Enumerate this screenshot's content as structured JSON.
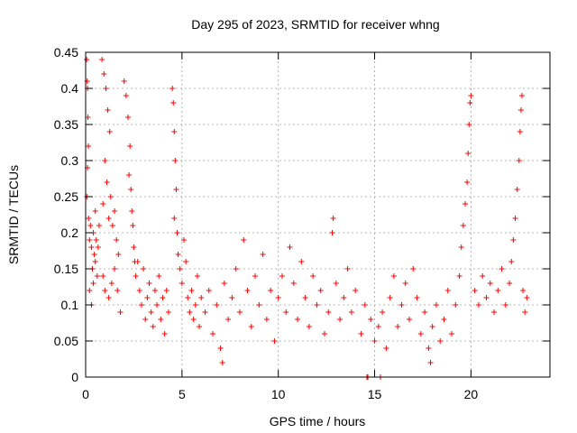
{
  "chart_data": {
    "type": "scatter",
    "title": "Day 295 of 2023, SRMTID for receiver whng",
    "xlabel": "GPS time / hours",
    "ylabel": "SRMTID / TECUs",
    "xlim": [
      0,
      24.1
    ],
    "ylim": [
      0,
      0.45
    ],
    "grid": true,
    "marker": "+",
    "color": "#ff0000",
    "xticks": [
      0,
      5,
      10,
      15,
      20
    ],
    "xtick_labels": [
      "0",
      "5",
      "10",
      "15",
      "20"
    ],
    "yticks": [
      0,
      0.05,
      0.1,
      0.15,
      0.2,
      0.25,
      0.3,
      0.35,
      0.4,
      0.45
    ],
    "ytick_labels": [
      "0",
      "0.05",
      "0.1",
      "0.15",
      "0.2",
      "0.25",
      "0.3",
      "0.35",
      "0.4",
      "0.45"
    ],
    "series": [
      {
        "name": "SRMTID",
        "points": [
          [
            0.05,
            0.44
          ],
          [
            0.08,
            0.41
          ],
          [
            0.1,
            0.4
          ],
          [
            0.12,
            0.36
          ],
          [
            0.14,
            0.32
          ],
          [
            0.1,
            0.29
          ],
          [
            0.06,
            0.25
          ],
          [
            0.15,
            0.22
          ],
          [
            0.2,
            0.19
          ],
          [
            0.25,
            0.21
          ],
          [
            0.3,
            0.18
          ],
          [
            0.35,
            0.15
          ],
          [
            0.4,
            0.2
          ],
          [
            0.45,
            0.17
          ],
          [
            0.5,
            0.23
          ],
          [
            0.55,
            0.19
          ],
          [
            0.6,
            0.14
          ],
          [
            0.65,
            0.18
          ],
          [
            0.7,
            0.21
          ],
          [
            0.2,
            0.12
          ],
          [
            0.3,
            0.1
          ],
          [
            0.4,
            0.13
          ],
          [
            0.5,
            0.16
          ],
          [
            0.85,
            0.44
          ],
          [
            0.95,
            0.42
          ],
          [
            1.05,
            0.4
          ],
          [
            1.15,
            0.37
          ],
          [
            1.25,
            0.34
          ],
          [
            1.0,
            0.3
          ],
          [
            1.1,
            0.27
          ],
          [
            0.9,
            0.24
          ],
          [
            1.2,
            0.22
          ],
          [
            1.3,
            0.25
          ],
          [
            1.4,
            0.21
          ],
          [
            1.5,
            0.23
          ],
          [
            1.6,
            0.19
          ],
          [
            1.7,
            0.17
          ],
          [
            0.9,
            0.14
          ],
          [
            1.0,
            0.12
          ],
          [
            1.2,
            0.11
          ],
          [
            1.35,
            0.13
          ],
          [
            1.5,
            0.15
          ],
          [
            1.65,
            0.12
          ],
          [
            1.8,
            0.09
          ],
          [
            2.0,
            0.41
          ],
          [
            2.1,
            0.39
          ],
          [
            2.2,
            0.36
          ],
          [
            2.3,
            0.32
          ],
          [
            2.25,
            0.28
          ],
          [
            2.35,
            0.26
          ],
          [
            2.4,
            0.23
          ],
          [
            2.45,
            0.21
          ],
          [
            2.5,
            0.18
          ],
          [
            2.55,
            0.16
          ],
          [
            2.6,
            0.14
          ],
          [
            2.7,
            0.16
          ],
          [
            2.8,
            0.12
          ],
          [
            2.9,
            0.1
          ],
          [
            3.0,
            0.15
          ],
          [
            3.1,
            0.08
          ],
          [
            3.2,
            0.11
          ],
          [
            3.3,
            0.13
          ],
          [
            3.4,
            0.09
          ],
          [
            3.5,
            0.07
          ],
          [
            3.6,
            0.12
          ],
          [
            3.7,
            0.1
          ],
          [
            3.8,
            0.14
          ],
          [
            3.9,
            0.08
          ],
          [
            4.0,
            0.11
          ],
          [
            4.1,
            0.06
          ],
          [
            4.2,
            0.12
          ],
          [
            4.3,
            0.09
          ],
          [
            4.5,
            0.4
          ],
          [
            4.55,
            0.38
          ],
          [
            4.6,
            0.34
          ],
          [
            4.65,
            0.3
          ],
          [
            4.7,
            0.26
          ],
          [
            4.6,
            0.22
          ],
          [
            4.75,
            0.2
          ],
          [
            4.8,
            0.17
          ],
          [
            4.9,
            0.15
          ],
          [
            5.0,
            0.13
          ],
          [
            5.1,
            0.19
          ],
          [
            5.2,
            0.16
          ],
          [
            5.3,
            0.11
          ],
          [
            5.4,
            0.09
          ],
          [
            5.5,
            0.12
          ],
          [
            5.6,
            0.08
          ],
          [
            5.7,
            0.1
          ],
          [
            5.8,
            0.14
          ],
          [
            5.9,
            0.07
          ],
          [
            6.0,
            0.11
          ],
          [
            6.2,
            0.09
          ],
          [
            6.4,
            0.12
          ],
          [
            6.6,
            0.06
          ],
          [
            6.8,
            0.1
          ],
          [
            7.0,
            0.04
          ],
          [
            7.1,
            0.02
          ],
          [
            7.2,
            0.13
          ],
          [
            7.4,
            0.08
          ],
          [
            7.6,
            0.11
          ],
          [
            7.8,
            0.15
          ],
          [
            8.0,
            0.09
          ],
          [
            8.2,
            0.19
          ],
          [
            8.4,
            0.12
          ],
          [
            8.6,
            0.07
          ],
          [
            8.8,
            0.14
          ],
          [
            9.0,
            0.1
          ],
          [
            9.2,
            0.17
          ],
          [
            9.4,
            0.08
          ],
          [
            9.6,
            0.12
          ],
          [
            9.8,
            0.05
          ],
          [
            10.0,
            0.11
          ],
          [
            10.2,
            0.14
          ],
          [
            10.4,
            0.09
          ],
          [
            10.6,
            0.18
          ],
          [
            10.8,
            0.13
          ],
          [
            11.0,
            0.08
          ],
          [
            11.2,
            0.16
          ],
          [
            11.4,
            0.11
          ],
          [
            11.6,
            0.07
          ],
          [
            11.8,
            0.14
          ],
          [
            12.0,
            0.1
          ],
          [
            12.2,
            0.12
          ],
          [
            12.4,
            0.06
          ],
          [
            12.6,
            0.09
          ],
          [
            12.8,
            0.2
          ],
          [
            12.85,
            0.22
          ],
          [
            13.0,
            0.13
          ],
          [
            13.2,
            0.08
          ],
          [
            13.4,
            0.11
          ],
          [
            13.6,
            0.15
          ],
          [
            13.8,
            0.09
          ],
          [
            14.0,
            0.12
          ],
          [
            14.3,
            0.06
          ],
          [
            14.5,
            0.1
          ],
          [
            14.6,
            0.0
          ],
          [
            14.65,
            0.0
          ],
          [
            14.8,
            0.08
          ],
          [
            15.0,
            0.05
          ],
          [
            15.2,
            0.07
          ],
          [
            15.3,
            0.0
          ],
          [
            15.4,
            0.09
          ],
          [
            15.6,
            0.04
          ],
          [
            15.8,
            0.11
          ],
          [
            16.0,
            0.14
          ],
          [
            16.2,
            0.07
          ],
          [
            16.4,
            0.1
          ],
          [
            16.6,
            0.13
          ],
          [
            16.8,
            0.08
          ],
          [
            17.0,
            0.15
          ],
          [
            17.2,
            0.11
          ],
          [
            17.4,
            0.06
          ],
          [
            17.6,
            0.09
          ],
          [
            17.8,
            0.04
          ],
          [
            17.9,
            0.02
          ],
          [
            18.0,
            0.07
          ],
          [
            18.2,
            0.1
          ],
          [
            18.4,
            0.05
          ],
          [
            18.6,
            0.08
          ],
          [
            18.8,
            0.12
          ],
          [
            19.0,
            0.06
          ],
          [
            19.2,
            0.1
          ],
          [
            19.4,
            0.14
          ],
          [
            19.5,
            0.18
          ],
          [
            19.6,
            0.21
          ],
          [
            19.7,
            0.24
          ],
          [
            19.8,
            0.27
          ],
          [
            19.85,
            0.31
          ],
          [
            19.9,
            0.35
          ],
          [
            19.95,
            0.38
          ],
          [
            20.0,
            0.39
          ],
          [
            20.2,
            0.12
          ],
          [
            20.4,
            0.1
          ],
          [
            20.6,
            0.14
          ],
          [
            20.8,
            0.11
          ],
          [
            21.0,
            0.13
          ],
          [
            21.2,
            0.09
          ],
          [
            21.4,
            0.12
          ],
          [
            21.6,
            0.15
          ],
          [
            21.8,
            0.1
          ],
          [
            22.0,
            0.13
          ],
          [
            22.1,
            0.16
          ],
          [
            22.2,
            0.19
          ],
          [
            22.3,
            0.22
          ],
          [
            22.4,
            0.26
          ],
          [
            22.5,
            0.3
          ],
          [
            22.55,
            0.34
          ],
          [
            22.6,
            0.37
          ],
          [
            22.65,
            0.39
          ],
          [
            22.7,
            0.12
          ],
          [
            22.8,
            0.09
          ],
          [
            22.9,
            0.11
          ]
        ]
      }
    ]
  }
}
